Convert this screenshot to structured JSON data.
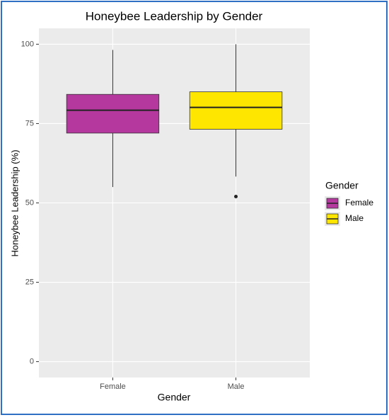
{
  "chart_data": {
    "type": "box",
    "title": "Honeybee Leadership by Gender",
    "x_label": "Gender",
    "y_label": "Honeybee Leadership (%)",
    "legend_title": "Gender",
    "categories": [
      "Female",
      "Male"
    ],
    "series": [
      {
        "name": "Female",
        "color": "#b5389f",
        "min": 55,
        "q1": 72,
        "median": 79.2,
        "q3": 84.2,
        "max": 98.2,
        "outliers": []
      },
      {
        "name": "Male",
        "color": "#ffe600",
        "min": 58.3,
        "q1": 73.2,
        "median": 80.1,
        "q3": 85,
        "max": 100,
        "outliers": [
          52
        ]
      }
    ],
    "ylim": [
      -5,
      105
    ],
    "yticks": [
      0,
      25,
      50,
      75,
      100
    ],
    "grid": true
  }
}
